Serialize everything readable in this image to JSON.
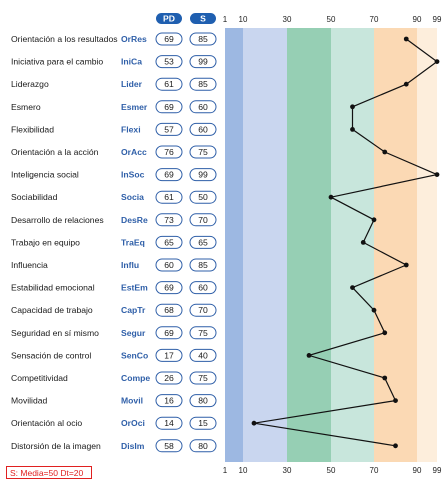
{
  "chart_data": {
    "type": "line",
    "orientation": "vertical-profile",
    "column_headers": {
      "pd": "PD",
      "s": "S"
    },
    "x_ticks": [
      "1",
      "10",
      "30",
      "50",
      "70",
      "90",
      "99"
    ],
    "x_tick_values": [
      1,
      10,
      30,
      50,
      70,
      90,
      99
    ],
    "xlim": [
      1,
      99
    ],
    "bands": [
      {
        "from": 1,
        "to": 10,
        "color": "#9db8e2"
      },
      {
        "from": 10,
        "to": 30,
        "color": "#c9d6ef"
      },
      {
        "from": 30,
        "to": 50,
        "color": "#96cfb4"
      },
      {
        "from": 50,
        "to": 70,
        "color": "#c8e6dc"
      },
      {
        "from": 70,
        "to": 90,
        "color": "#fbd9b4"
      },
      {
        "from": 90,
        "to": 99,
        "color": "#fdeedc"
      }
    ],
    "rows": [
      {
        "label": "Orientación a los resultados",
        "code": "OrRes",
        "pd": 69,
        "s": 85
      },
      {
        "label": "Iniciativa para el cambio",
        "code": "IniCa",
        "pd": 53,
        "s": 99
      },
      {
        "label": "Liderazgo",
        "code": "Lider",
        "pd": 61,
        "s": 85
      },
      {
        "label": "Esmero",
        "code": "Esmer",
        "pd": 69,
        "s": 60
      },
      {
        "label": "Flexibilidad",
        "code": "Flexi",
        "pd": 57,
        "s": 60
      },
      {
        "label": "Orientación a la acción",
        "code": "OrAcc",
        "pd": 76,
        "s": 75
      },
      {
        "label": "Inteligencia social",
        "code": "InSoc",
        "pd": 69,
        "s": 99
      },
      {
        "label": "Sociabilidad",
        "code": "Socia",
        "pd": 61,
        "s": 50
      },
      {
        "label": "Desarrollo de relaciones",
        "code": "DesRe",
        "pd": 73,
        "s": 70
      },
      {
        "label": "Trabajo en equipo",
        "code": "TraEq",
        "pd": 65,
        "s": 65
      },
      {
        "label": "Influencia",
        "code": "Influ",
        "pd": 60,
        "s": 85
      },
      {
        "label": "Estabilidad emocional",
        "code": "EstEm",
        "pd": 69,
        "s": 60
      },
      {
        "label": "Capacidad de trabajo",
        "code": "CapTr",
        "pd": 68,
        "s": 70
      },
      {
        "label": "Seguridad en sí mismo",
        "code": "Segur",
        "pd": 69,
        "s": 75
      },
      {
        "label": "Sensación de control",
        "code": "SenCo",
        "pd": 17,
        "s": 40
      },
      {
        "label": "Competitividad",
        "code": "Compe",
        "pd": 26,
        "s": 75
      },
      {
        "label": "Movilidad",
        "code": "Movil",
        "pd": 16,
        "s": 80
      },
      {
        "label": "Orientación al ocio",
        "code": "OrOci",
        "pd": 14,
        "s": 15
      },
      {
        "label": "Distorsión de la imagen",
        "code": "DisIm",
        "pd": 58,
        "s": 80
      }
    ],
    "footnote": "S: Media=50 Dt=20",
    "colors": {
      "header_pill": "#1f5fb0",
      "code_text": "#2f5fa8",
      "line": "#111111",
      "footnote": "#e02020"
    }
  }
}
